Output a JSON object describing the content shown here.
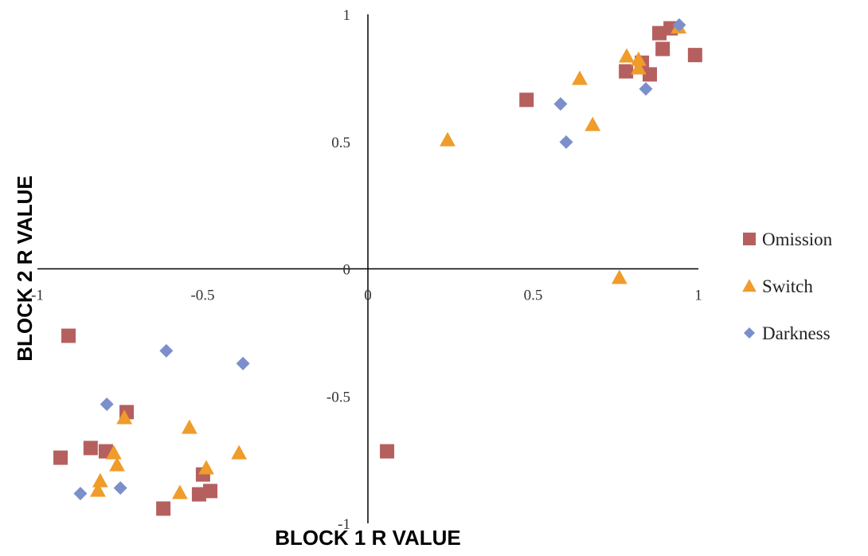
{
  "chart_data": {
    "type": "scatter",
    "x_label": "BLOCK 1 R VALUE",
    "y_label": "BLOCK 2 R VALUE",
    "xlim": [
      -1,
      1
    ],
    "ylim": [
      -1,
      1
    ],
    "xticks": [
      -1,
      -0.5,
      0,
      0.5,
      1
    ],
    "yticks": [
      -1,
      -0.5,
      0,
      0.5,
      1
    ],
    "legend": "right",
    "series": [
      {
        "name": "Omission",
        "color": "#b5605e",
        "marker": "square",
        "x": [
          0.916,
          0.882,
          0.892,
          0.99,
          0.829,
          0.781,
          0.853,
          0.48,
          -0.906,
          -0.73,
          -0.839,
          -0.793,
          -0.93,
          0.058,
          -0.499,
          -0.511,
          -0.477,
          -0.619
        ],
        "values": [
          0.945,
          0.926,
          0.864,
          0.84,
          0.81,
          0.776,
          0.764,
          0.664,
          -0.263,
          -0.563,
          -0.704,
          -0.717,
          -0.742,
          -0.717,
          -0.808,
          -0.886,
          -0.873,
          -0.942
        ]
      },
      {
        "name": "Switch",
        "color": "#ef9c2a",
        "marker": "triangle",
        "x": [
          0.94,
          0.783,
          0.819,
          0.819,
          0.641,
          0.68,
          0.241,
          0.761,
          -0.737,
          -0.54,
          -0.769,
          -0.759,
          -0.39,
          -0.489,
          -0.81,
          -0.817,
          -0.569
        ],
        "values": [
          0.95,
          0.836,
          0.823,
          0.789,
          0.748,
          0.567,
          0.507,
          -0.034,
          -0.585,
          -0.623,
          -0.723,
          -0.77,
          -0.723,
          -0.782,
          -0.833,
          -0.87,
          -0.879
        ]
      },
      {
        "name": "Darkness",
        "color": "#7b8fcc",
        "marker": "diamond",
        "x": [
          0.942,
          0.583,
          0.841,
          0.6,
          -0.61,
          -0.378,
          -0.79,
          -0.749,
          -0.87
        ],
        "values": [
          0.958,
          0.648,
          0.707,
          0.498,
          -0.322,
          -0.372,
          -0.532,
          -0.861,
          -0.883
        ]
      }
    ]
  }
}
